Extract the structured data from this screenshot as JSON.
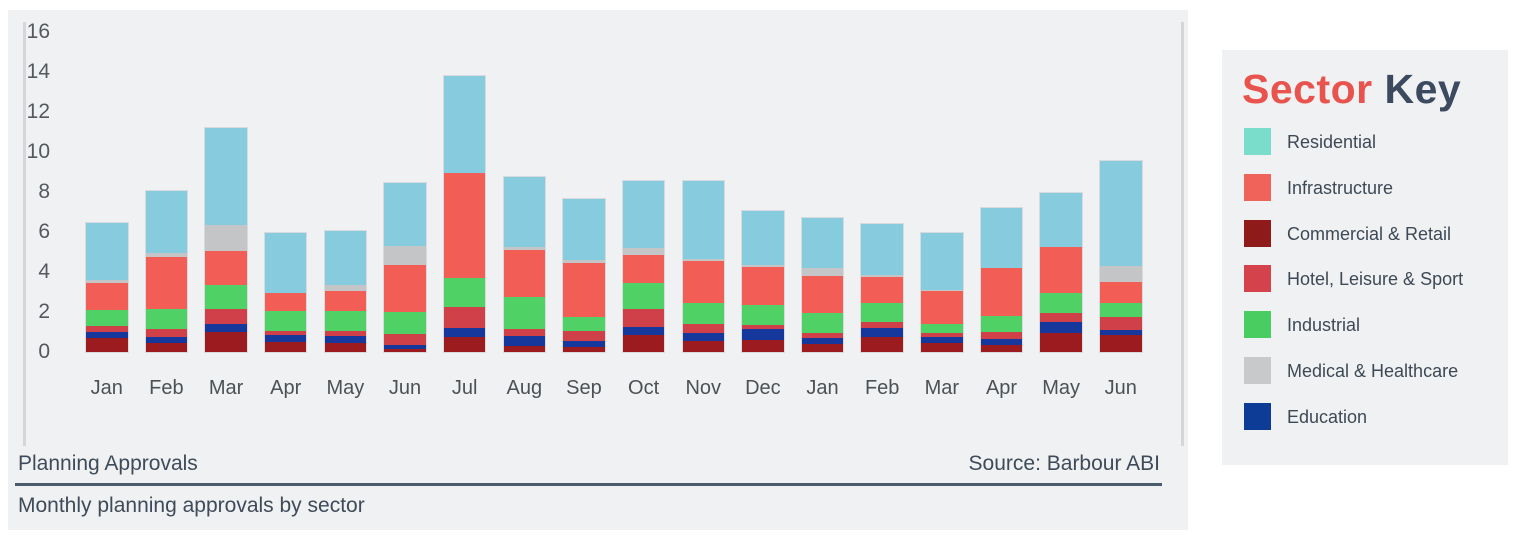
{
  "footer": {
    "title": "Planning Approvals",
    "source": "Source: Barbour ABI",
    "subtitle": "Monthly planning approvals by sector"
  },
  "legend": {
    "title_sector": "Sector",
    "title_key": " Key",
    "title_sector_color": "#e8534e",
    "title_key_color": "#3b4a5f"
  },
  "sectors": [
    {
      "name": "Residential",
      "chart_color": "#87cbdf",
      "legend_color": "#7adcca"
    },
    {
      "name": "Infrastructure",
      "chart_color": "#f25e55",
      "legend_color": "#f0635a"
    },
    {
      "name": "Commercial & Retail",
      "chart_color": "#9b1b1f",
      "legend_color": "#8e1a1a"
    },
    {
      "name": "Hotel, Leisure & Sport",
      "chart_color": "#cf4049",
      "legend_color": "#d4434c"
    },
    {
      "name": "Industrial",
      "chart_color": "#4fd165",
      "legend_color": "#4acd60"
    },
    {
      "name": "Medical & Healthcare",
      "chart_color": "#c3c5c7",
      "legend_color": "#c7c9ca"
    },
    {
      "name": "Education",
      "chart_color": "#16379b",
      "legend_color": "#0d3c96"
    }
  ],
  "chart_data": {
    "type": "bar",
    "stacked": true,
    "title": "Planning Approvals",
    "subtitle": "Monthly planning approvals by sector",
    "source": "Source: Barbour ABI",
    "categories": [
      "Jan",
      "Feb",
      "Mar",
      "Apr",
      "May",
      "Jun",
      "Jul",
      "Aug",
      "Sep",
      "Oct",
      "Nov",
      "Dec",
      "Jan",
      "Feb",
      "Mar",
      "Apr",
      "May",
      "Jun"
    ],
    "yticks": [
      16,
      14,
      12,
      10,
      8,
      6,
      4,
      2,
      0
    ],
    "ylim": [
      0,
      16
    ],
    "grid": false,
    "legend_position": "right",
    "stack_order_bottom_to_top": [
      "Commercial & Retail",
      "Education",
      "Hotel, Leisure & Sport",
      "Industrial",
      "Infrastructure",
      "Medical & Healthcare",
      "Residential"
    ],
    "series": [
      {
        "name": "Residential",
        "values": [
          2.85,
          3.1,
          4.85,
          3.0,
          2.7,
          3.15,
          4.85,
          3.5,
          3.05,
          3.35,
          3.9,
          2.7,
          2.5,
          2.55,
          2.85,
          3.0,
          2.7,
          5.25
        ]
      },
      {
        "name": "Infrastructure",
        "values": [
          1.35,
          2.6,
          1.7,
          0.9,
          1.0,
          2.35,
          5.25,
          2.35,
          2.7,
          1.4,
          2.1,
          1.9,
          1.85,
          1.3,
          1.65,
          2.4,
          2.3,
          1.05
        ]
      },
      {
        "name": "Commercial & Retail",
        "values": [
          0.7,
          0.45,
          1.0,
          0.5,
          0.45,
          0.15,
          0.75,
          0.3,
          0.25,
          0.85,
          0.55,
          0.6,
          0.4,
          0.75,
          0.45,
          0.35,
          0.95,
          0.85
        ]
      },
      {
        "name": "Hotel, Leisure & Sport",
        "values": [
          0.3,
          0.4,
          0.75,
          0.2,
          0.25,
          0.55,
          1.05,
          0.35,
          0.5,
          0.9,
          0.45,
          0.2,
          0.25,
          0.3,
          0.2,
          0.35,
          0.45,
          0.65
        ]
      },
      {
        "name": "Industrial",
        "values": [
          0.8,
          1.0,
          1.2,
          1.0,
          1.0,
          1.1,
          1.45,
          1.6,
          0.7,
          1.3,
          1.05,
          1.0,
          1.0,
          0.95,
          0.45,
          0.8,
          1.0,
          0.7
        ]
      },
      {
        "name": "Medical & Healthcare",
        "values": [
          0.15,
          0.2,
          1.3,
          0.0,
          0.3,
          0.95,
          0.0,
          0.15,
          0.15,
          0.35,
          0.1,
          0.1,
          0.4,
          0.1,
          0.05,
          0.0,
          0.0,
          0.8
        ]
      },
      {
        "name": "Education",
        "values": [
          0.3,
          0.3,
          0.4,
          0.35,
          0.35,
          0.2,
          0.45,
          0.5,
          0.3,
          0.4,
          0.4,
          0.55,
          0.3,
          0.45,
          0.3,
          0.3,
          0.55,
          0.25
        ]
      }
    ],
    "totals": [
      6.45,
      8.05,
      11.2,
      5.95,
      6.05,
      8.45,
      13.8,
      8.75,
      7.65,
      8.55,
      8.55,
      7.05,
      6.7,
      6.4,
      5.95,
      7.2,
      7.95,
      9.55
    ]
  }
}
